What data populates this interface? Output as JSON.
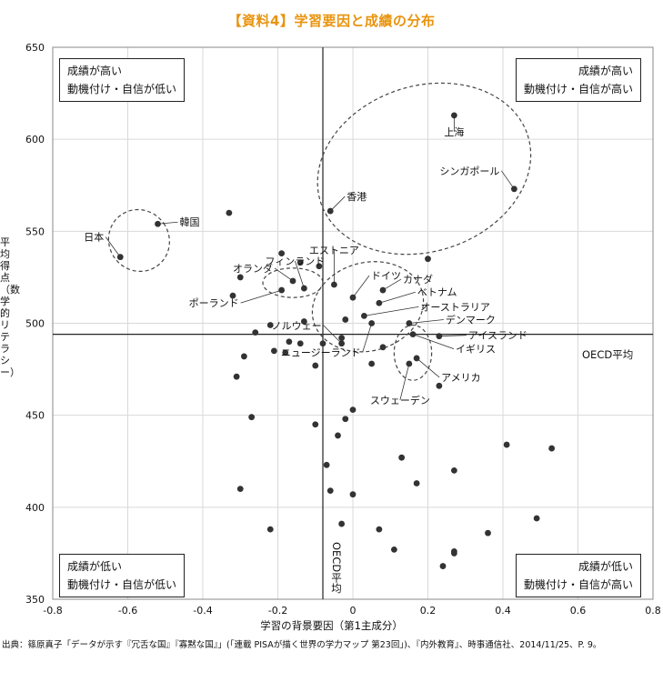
{
  "title": "【資料4】学習要因と成績の分布",
  "quadrants": {
    "top_left": [
      "成績が高い",
      "動機付け・自信が低い"
    ],
    "top_right": [
      "成績が高い",
      "動機付け・自信が高い"
    ],
    "bottom_left": [
      "成績が低い",
      "動機付け・自信が低い"
    ],
    "bottom_right": [
      "成績が低い",
      "動機付け・自信が高い"
    ]
  },
  "oecd_h_label": "OECD平均",
  "oecd_v_label": "OECD平均",
  "source": "出典：篠原真子「データが示す『冗舌な国』『寡黙な国』」(「連載 PISAが描く世界の学力マップ 第23回」)、『内外教育』、時事通信社、2014/11/25、P. 9。",
  "colors": {
    "title": "#e8940f",
    "point": "#333333",
    "axis": "#222222",
    "grid": "#d9d9d9"
  },
  "chart_data": {
    "type": "scatter",
    "title": "【資料4】学習要因と成績の分布",
    "xlabel": "学習の背景要因（第1主成分）",
    "ylabel": "平均得点（数学的リテラシー）",
    "xlim": [
      -0.8,
      0.8
    ],
    "ylim": [
      350,
      650
    ],
    "x_ticks": [
      "-0.8",
      "-0.6",
      "-0.4",
      "-0.2",
      "0",
      "0.2",
      "0.4",
      "0.6",
      "0.8"
    ],
    "y_ticks": [
      "650",
      "600",
      "550",
      "500",
      "450",
      "400",
      "350"
    ],
    "grid": true,
    "reference_lines": {
      "oecd_x": -0.08,
      "oecd_y": 494
    },
    "labeled_points": [
      {
        "name": "上海",
        "x": 0.27,
        "y": 613
      },
      {
        "name": "シンガポール",
        "x": 0.43,
        "y": 573
      },
      {
        "name": "香港",
        "x": -0.06,
        "y": 561
      },
      {
        "name": "日本",
        "x": -0.62,
        "y": 536
      },
      {
        "name": "韓国",
        "x": -0.52,
        "y": 554
      },
      {
        "name": "エストニア",
        "x": -0.05,
        "y": 521
      },
      {
        "name": "フィンランド",
        "x": -0.13,
        "y": 519
      },
      {
        "name": "オランダ",
        "x": -0.16,
        "y": 523
      },
      {
        "name": "ポーランド",
        "x": -0.19,
        "y": 518
      },
      {
        "name": "ドイツ",
        "x": 0.0,
        "y": 514
      },
      {
        "name": "カナダ",
        "x": 0.08,
        "y": 518
      },
      {
        "name": "ベトナム",
        "x": 0.07,
        "y": 511
      },
      {
        "name": "オーストラリア",
        "x": 0.03,
        "y": 504
      },
      {
        "name": "デンマーク",
        "x": 0.15,
        "y": 500
      },
      {
        "name": "ノルウェー",
        "x": -0.03,
        "y": 489
      },
      {
        "name": "ニュージーランド",
        "x": 0.05,
        "y": 500
      },
      {
        "name": "アイスランド",
        "x": 0.23,
        "y": 493
      },
      {
        "name": "イギリス",
        "x": 0.16,
        "y": 494
      },
      {
        "name": "アメリカ",
        "x": 0.17,
        "y": 481
      },
      {
        "name": "スウェーデン",
        "x": 0.15,
        "y": 478
      }
    ],
    "points": [
      {
        "x": -0.33,
        "y": 560
      },
      {
        "x": -0.32,
        "y": 515
      },
      {
        "x": -0.3,
        "y": 525
      },
      {
        "x": -0.19,
        "y": 538
      },
      {
        "x": -0.14,
        "y": 533
      },
      {
        "x": -0.09,
        "y": 531
      },
      {
        "x": -0.02,
        "y": 502
      },
      {
        "x": 0.2,
        "y": 535
      },
      {
        "x": -0.22,
        "y": 499
      },
      {
        "x": -0.26,
        "y": 495
      },
      {
        "x": -0.29,
        "y": 482
      },
      {
        "x": -0.21,
        "y": 485
      },
      {
        "x": -0.18,
        "y": 484
      },
      {
        "x": -0.17,
        "y": 490
      },
      {
        "x": -0.14,
        "y": 489
      },
      {
        "x": -0.1,
        "y": 477
      },
      {
        "x": -0.08,
        "y": 489
      },
      {
        "x": -0.13,
        "y": 501
      },
      {
        "x": -0.03,
        "y": 492
      },
      {
        "x": 0.05,
        "y": 478
      },
      {
        "x": 0.08,
        "y": 487
      },
      {
        "x": 0.23,
        "y": 466
      },
      {
        "x": -0.31,
        "y": 471
      },
      {
        "x": -0.27,
        "y": 449
      },
      {
        "x": -0.1,
        "y": 445
      },
      {
        "x": -0.04,
        "y": 439
      },
      {
        "x": -0.02,
        "y": 448
      },
      {
        "x": 0.0,
        "y": 453
      },
      {
        "x": -0.07,
        "y": 423
      },
      {
        "x": -0.06,
        "y": 409
      },
      {
        "x": 0.0,
        "y": 407
      },
      {
        "x": -0.3,
        "y": 410
      },
      {
        "x": -0.22,
        "y": 388
      },
      {
        "x": -0.03,
        "y": 391
      },
      {
        "x": 0.07,
        "y": 388
      },
      {
        "x": 0.11,
        "y": 377
      },
      {
        "x": 0.13,
        "y": 427
      },
      {
        "x": 0.17,
        "y": 413
      },
      {
        "x": 0.27,
        "y": 420
      },
      {
        "x": 0.41,
        "y": 434
      },
      {
        "x": 0.53,
        "y": 432
      },
      {
        "x": 0.49,
        "y": 394
      },
      {
        "x": 0.36,
        "y": 386
      },
      {
        "x": 0.27,
        "y": 376
      },
      {
        "x": 0.27,
        "y": 375
      },
      {
        "x": 0.24,
        "y": 368
      }
    ],
    "ellipses": [
      {
        "cx": 0.19,
        "cy": 584,
        "rx": 0.29,
        "ry": 45,
        "rot": -18
      },
      {
        "cx": -0.57,
        "cy": 545,
        "rx": 0.08,
        "ry": 17,
        "rot": -35
      },
      {
        "cx": -0.16,
        "cy": 522,
        "rx": 0.08,
        "ry": 8,
        "rot": 0
      },
      {
        "cx": 0.04,
        "cy": 509,
        "rx": 0.15,
        "ry": 24,
        "rot": -15
      },
      {
        "cx": 0.16,
        "cy": 484,
        "rx": 0.05,
        "ry": 15,
        "rot": 0
      }
    ]
  }
}
